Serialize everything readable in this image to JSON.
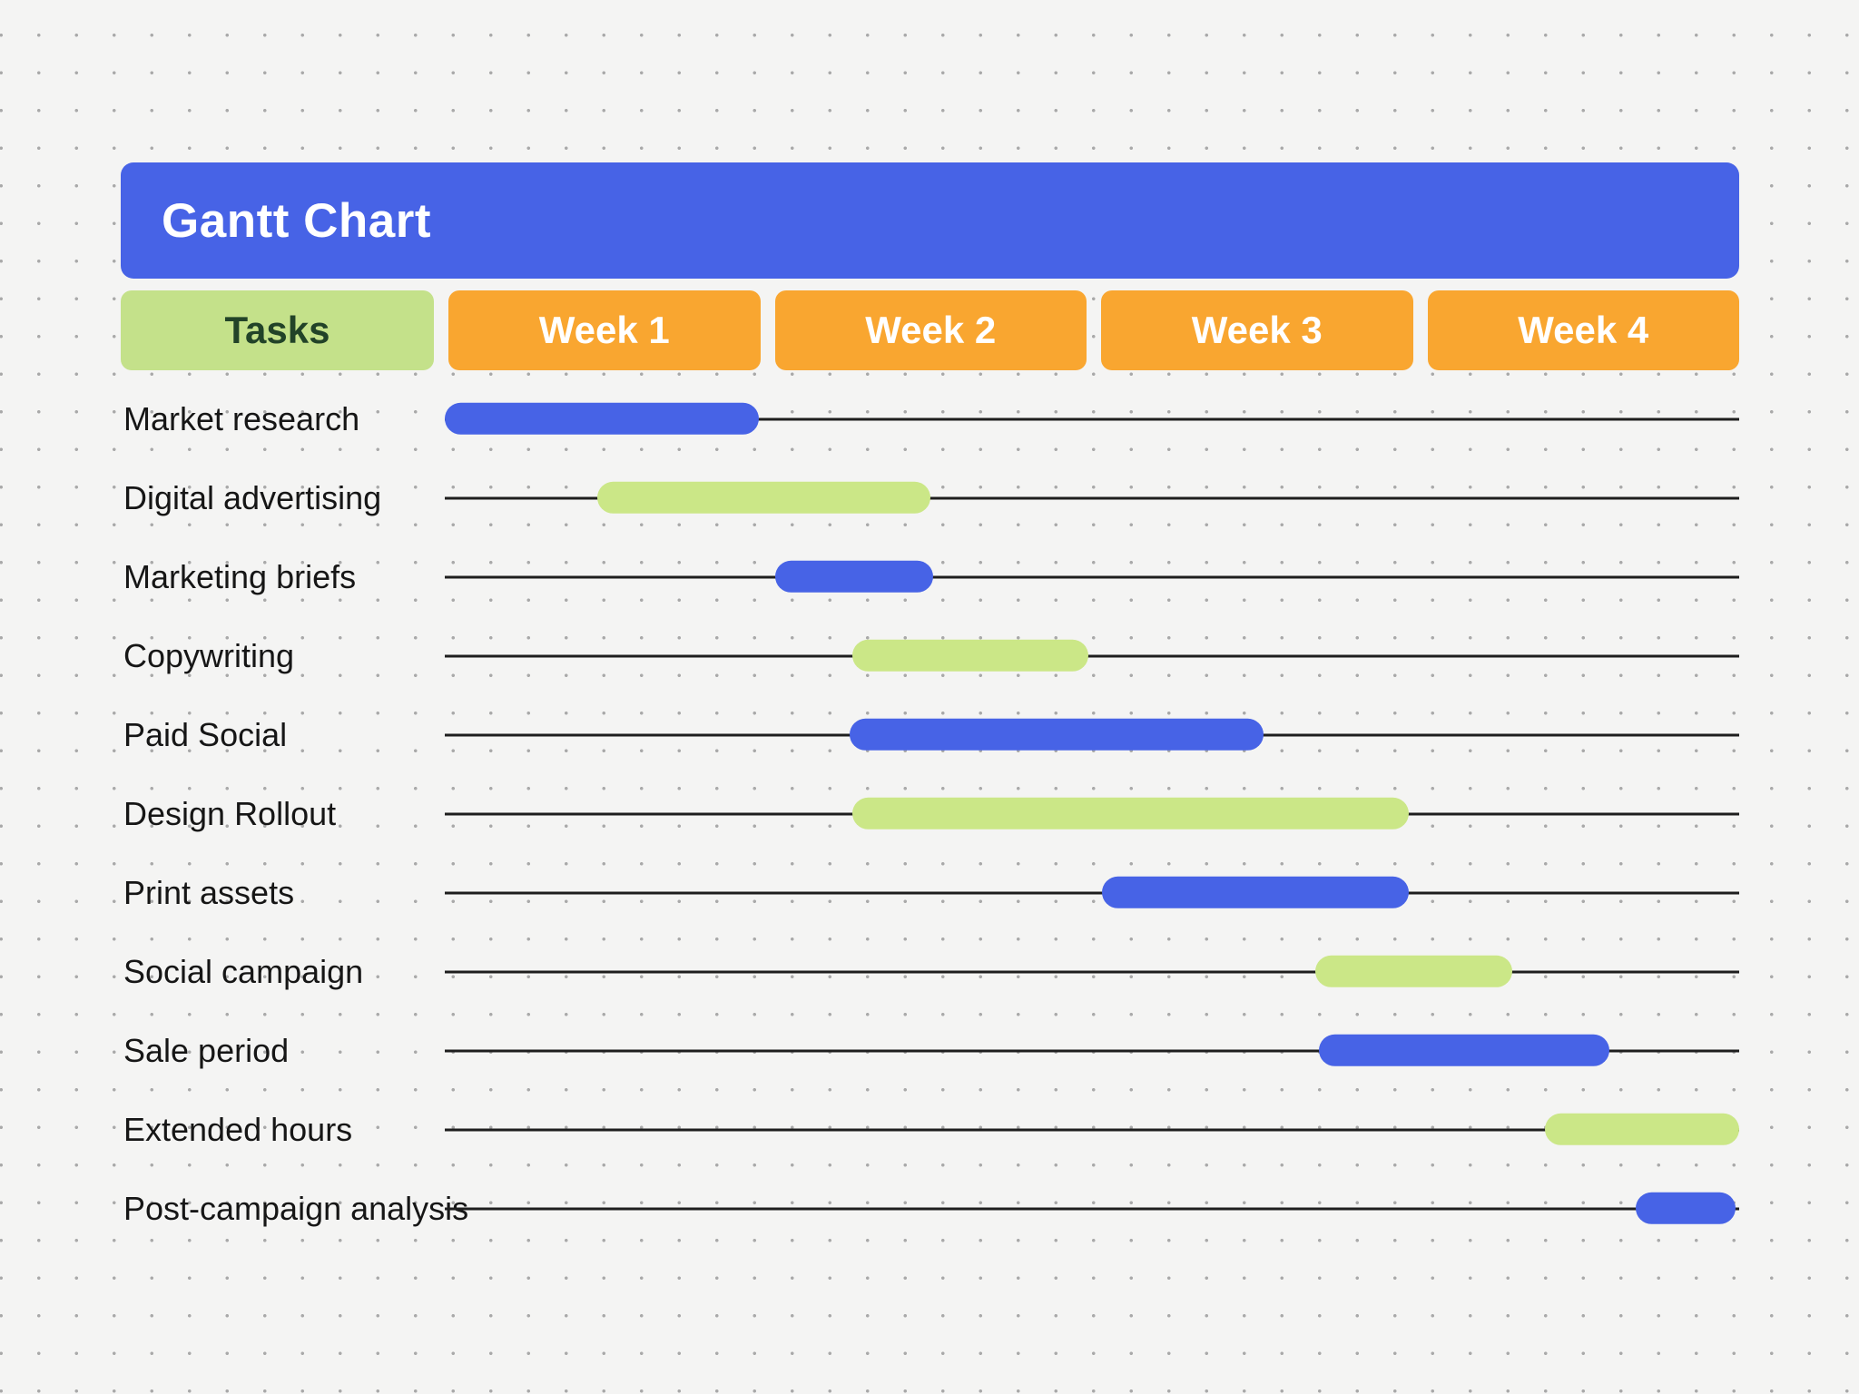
{
  "page": {
    "title": "Gantt Chart"
  },
  "columns": {
    "tasks_label": "Tasks",
    "weeks": [
      "Week 1",
      "Week 2",
      "Week 3",
      "Week 4"
    ]
  },
  "colors": {
    "background": "#f4f4f3",
    "dot": "#a9a9a9",
    "banner_blue": "#4763e6",
    "blue": "#4763e6",
    "green": "#cbe787",
    "header_orange": "#f9a630",
    "tasks_header_green": "#c4e18a",
    "tasks_header_text": "#224328",
    "row_line": "#1e1e1e"
  },
  "chart_data": {
    "type": "gantt",
    "title": "Gantt Chart",
    "x_axis": {
      "unit": "weeks",
      "categories": [
        "Week 1",
        "Week 2",
        "Week 3",
        "Week 4"
      ],
      "range_weeks": [
        0,
        4
      ]
    },
    "legend": "none",
    "grid": "dotted background, one horizontal baseline per task",
    "tasks": [
      {
        "label": "Market research",
        "start_week": 0.0,
        "end_week": 0.97,
        "color": "blue"
      },
      {
        "label": "Digital advertising",
        "start_week": 0.47,
        "end_week": 1.5,
        "color": "green"
      },
      {
        "label": "Marketing briefs",
        "start_week": 1.02,
        "end_week": 1.51,
        "color": "blue"
      },
      {
        "label": "Copywriting",
        "start_week": 1.26,
        "end_week": 1.99,
        "color": "green"
      },
      {
        "label": "Paid Social",
        "start_week": 1.25,
        "end_week": 2.53,
        "color": "blue"
      },
      {
        "label": "Design Rollout",
        "start_week": 1.26,
        "end_week": 2.98,
        "color": "green"
      },
      {
        "label": "Print assets",
        "start_week": 2.03,
        "end_week": 2.98,
        "color": "blue"
      },
      {
        "label": "Social campaign",
        "start_week": 2.69,
        "end_week": 3.3,
        "color": "green"
      },
      {
        "label": "Sale period",
        "start_week": 2.7,
        "end_week": 3.6,
        "color": "blue"
      },
      {
        "label": "Extended hours",
        "start_week": 3.4,
        "end_week": 4.0,
        "color": "green"
      },
      {
        "label": "Post-campaign analysis",
        "start_week": 3.68,
        "end_week": 3.99,
        "color": "blue"
      }
    ]
  }
}
